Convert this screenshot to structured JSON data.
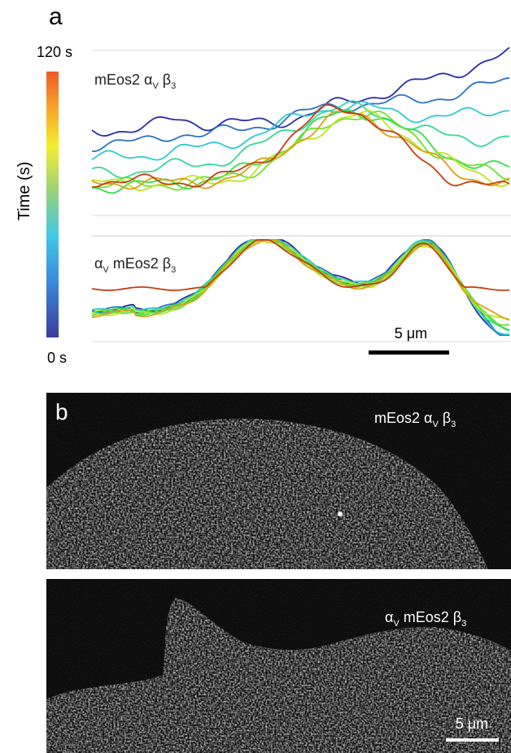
{
  "panel_a": {
    "label": "a",
    "colorbar": {
      "title": "Time (s)",
      "max_label": "120 s",
      "min_label": "0 s"
    },
    "top_trace_label": [
      "mEos2 α",
      "V",
      " β",
      "3"
    ],
    "bottom_trace_label": [
      "α",
      "V",
      " mEos2 β",
      "3"
    ],
    "scale_bar": "5 μm"
  },
  "panel_b": {
    "label": "b",
    "top_image_label": [
      "mEos2 α",
      "V",
      " β",
      "3"
    ],
    "bottom_image_label": [
      "α",
      "V",
      " mEos2 β",
      "3"
    ],
    "scale_bar": "5 μm"
  }
}
